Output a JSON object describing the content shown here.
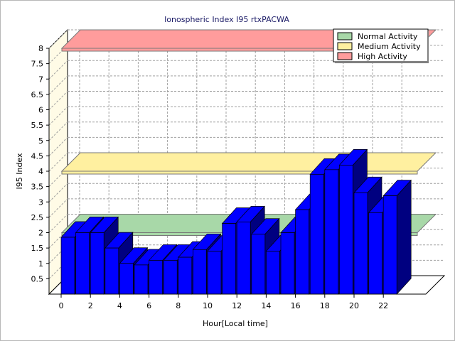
{
  "chart_data": {
    "type": "bar",
    "title": "Ionospheric Index I95 rtxPACWA",
    "xlabel": "Hour[Local time]",
    "ylabel": "I95 Index",
    "ylim": [
      0,
      8
    ],
    "yticks": [
      "0.5",
      "1",
      "1.5",
      "2",
      "2.5",
      "3",
      "3.5",
      "4",
      "4.5",
      "5",
      "5.5",
      "6",
      "6.5",
      "7",
      "7.5",
      "8"
    ],
    "xticks": [
      "0",
      "2",
      "4",
      "6",
      "8",
      "10",
      "12",
      "14",
      "16",
      "18",
      "20",
      "22"
    ],
    "x": [
      0,
      1,
      2,
      3,
      4,
      5,
      6,
      7,
      8,
      9,
      10,
      11,
      12,
      13,
      14,
      15,
      16,
      17,
      18,
      19,
      20,
      21,
      22,
      23
    ],
    "values": [
      1.85,
      2.0,
      2.0,
      1.5,
      1.0,
      0.95,
      1.1,
      1.1,
      1.2,
      1.45,
      1.4,
      2.3,
      2.35,
      1.95,
      1.4,
      2.0,
      2.75,
      3.9,
      4.05,
      4.2,
      3.3,
      2.65,
      3.2,
      null
    ],
    "bands": [
      {
        "name": "Normal Activity",
        "value": 2.0,
        "color": "#a8d8a8"
      },
      {
        "name": "Medium Activity",
        "value": 4.0,
        "color": "#fff0a0"
      },
      {
        "name": "High Activity",
        "value": 8.0,
        "color": "#ff9c9c"
      }
    ],
    "bar_color": "#0000ff",
    "grid": true,
    "legend_position": "top-right"
  }
}
